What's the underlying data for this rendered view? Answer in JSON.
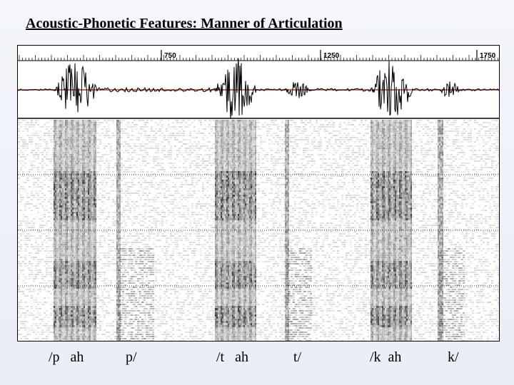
{
  "title": "Acoustic-Phonetic Features: Manner of Articulation",
  "time_ticks": [
    "750",
    "1250",
    "1750"
  ],
  "syllables": [
    "/p   ah",
    "p/",
    "/t   ah",
    "t/",
    "/k  ah",
    "k/"
  ],
  "colors": {
    "waveform": "#000000",
    "baseline": "#c0342a",
    "spectrogram_ink": "#1a1a1a",
    "grid": "#000000"
  }
}
